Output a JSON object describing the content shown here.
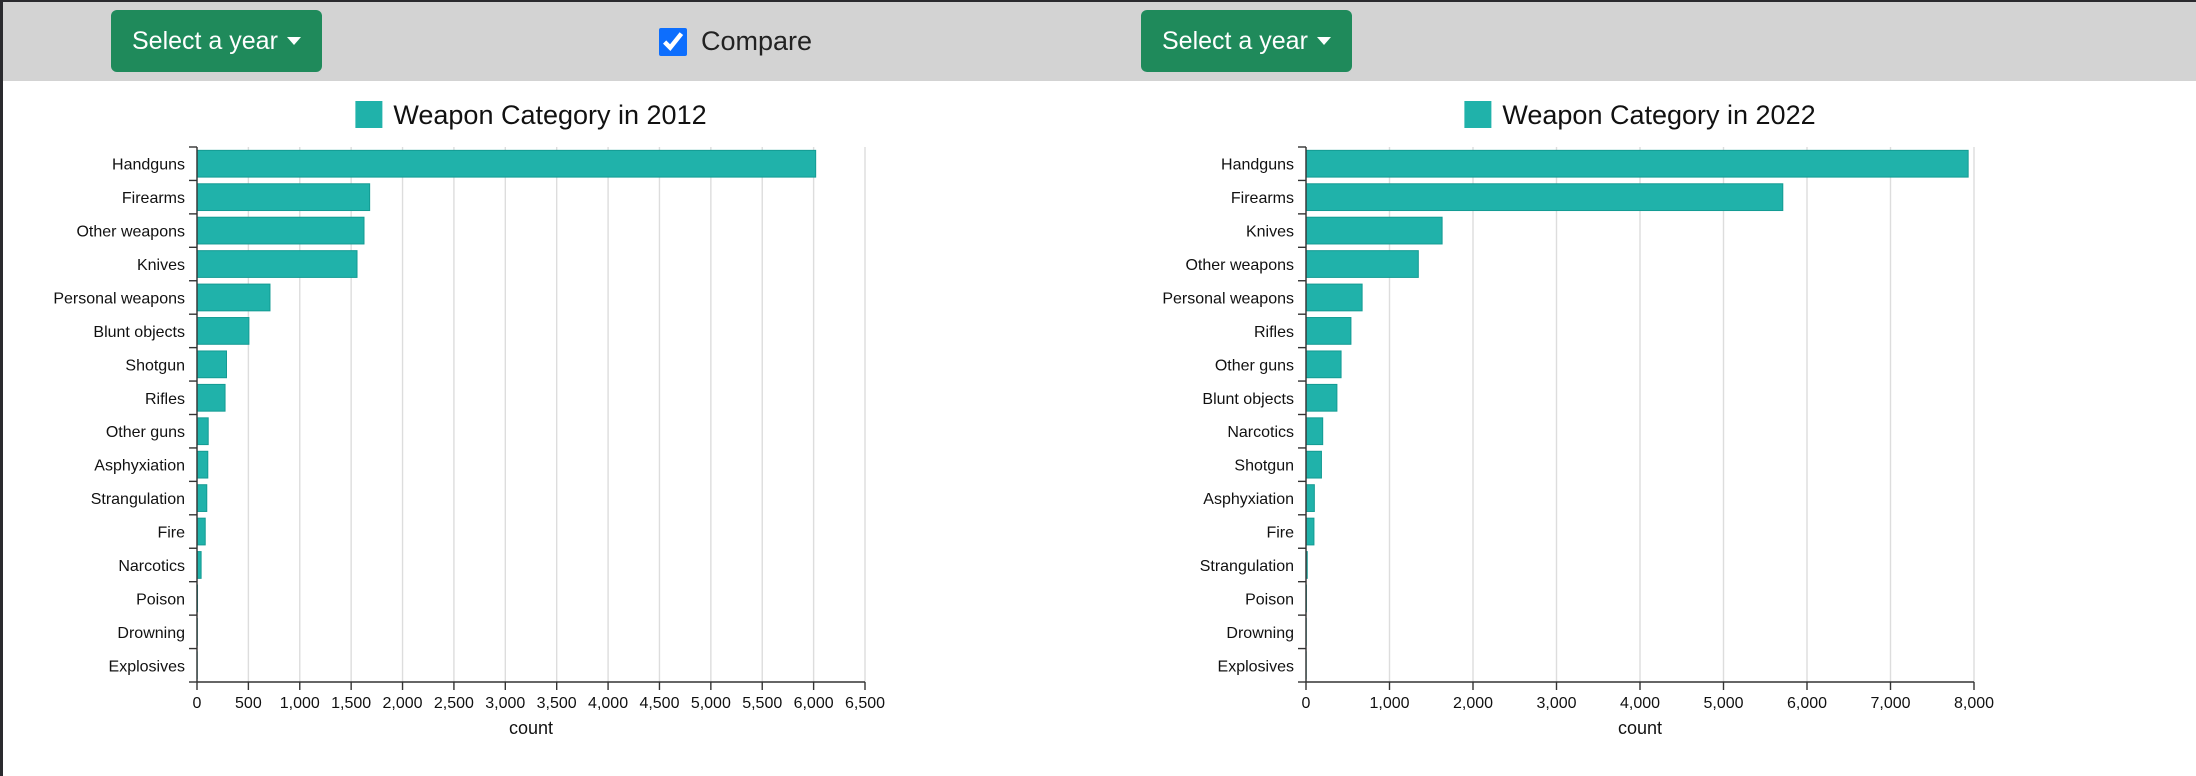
{
  "controls": {
    "left_button": "Select a year",
    "compare": "Compare",
    "compare_checked": true,
    "right_button": "Select a year"
  },
  "chart_data": [
    {
      "type": "hbar",
      "title": "Weapon Category in 2012",
      "color": "#20b2aa",
      "x_label": "count",
      "categories": [
        "Handguns",
        "Firearms",
        "Other weapons",
        "Knives",
        "Personal weapons",
        "Blunt objects",
        "Shotgun",
        "Rifles",
        "Other guns",
        "Asphyxiation",
        "Strangulation",
        "Fire",
        "Narcotics",
        "Poison",
        "Drowning",
        "Explosives"
      ],
      "values": [
        6020,
        1680,
        1625,
        1557,
        710,
        505,
        287,
        273,
        109,
        105,
        95,
        80,
        40,
        5,
        3,
        2
      ],
      "xlim": [
        0,
        6500
      ],
      "xticks": [
        0,
        500,
        {
          "value": 1000,
          "label": "1,000"
        },
        {
          "value": 1500,
          "label": "1,500"
        },
        {
          "value": 2000,
          "label": "2,000"
        },
        {
          "value": 2500,
          "label": "2,500"
        },
        {
          "value": 3000,
          "label": "3,000"
        },
        {
          "value": 3500,
          "label": "3,500"
        },
        {
          "value": 4000,
          "label": "4,000"
        },
        {
          "value": 4500,
          "label": "4,500"
        },
        {
          "value": 5000,
          "label": "5,000"
        },
        {
          "value": 5500,
          "label": "5,500"
        },
        {
          "value": 6000,
          "label": "6,000"
        },
        {
          "value": 6500,
          "label": "6,500"
        }
      ],
      "grid": true
    },
    {
      "type": "hbar",
      "title": "Weapon Category in 2022",
      "color": "#20b2aa",
      "x_label": "count",
      "categories": [
        "Handguns",
        "Firearms",
        "Knives",
        "Other weapons",
        "Personal weapons",
        "Rifles",
        "Other guns",
        "Blunt objects",
        "Narcotics",
        "Shotgun",
        "Asphyxiation",
        "Fire",
        "Strangulation",
        "Poison",
        "Drowning",
        "Explosives"
      ],
      "values": [
        7930,
        5710,
        1630,
        1345,
        672,
        538,
        420,
        370,
        200,
        185,
        100,
        95,
        15,
        5,
        3,
        2
      ],
      "xlim": [
        0,
        8000
      ],
      "xticks": [
        0,
        {
          "value": 1000,
          "label": "1,000"
        },
        {
          "value": 2000,
          "label": "2,000"
        },
        {
          "value": 3000,
          "label": "3,000"
        },
        {
          "value": 4000,
          "label": "4,000"
        },
        {
          "value": 5000,
          "label": "5,000"
        },
        {
          "value": 6000,
          "label": "6,000"
        },
        {
          "value": 7000,
          "label": "7,000"
        },
        {
          "value": 8000,
          "label": "8,000"
        }
      ],
      "grid": true
    }
  ]
}
